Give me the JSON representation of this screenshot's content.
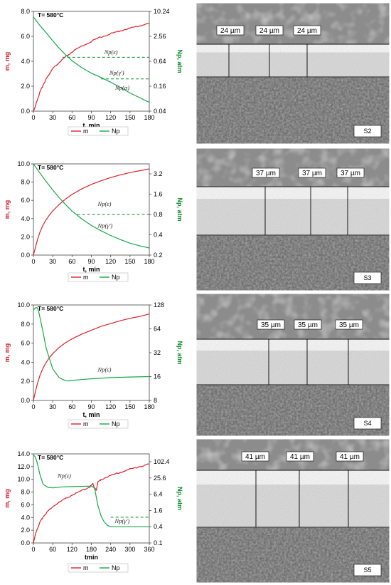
{
  "chart_data": [
    {
      "type": "line",
      "id": "c1",
      "annotation": "T= 580°C",
      "xlabel": "t, min",
      "ylabel": "m, mg",
      "y2label": "Np, atm",
      "xlim": [
        0,
        180
      ],
      "ylim": [
        0,
        8
      ],
      "y2log": true,
      "y2lim": [
        0.04,
        10.24
      ],
      "xticks": [
        "0",
        "30",
        "60",
        "90",
        "120",
        "150",
        "180"
      ],
      "yticks": [
        "0.0",
        "2.0",
        "4.0",
        "6.0",
        "8.0"
      ],
      "y2ticks": [
        "0.04",
        "0.16",
        "0.64",
        "2.56",
        "10.24"
      ],
      "legend": [
        "m",
        "Np"
      ],
      "series": [
        {
          "name": "m",
          "axis": "left",
          "color": "#e0202a",
          "x": [
            0,
            3,
            6,
            10,
            15,
            20,
            25,
            30,
            40,
            50,
            60,
            75,
            90,
            105,
            120,
            135,
            150,
            165,
            180
          ],
          "y": [
            0,
            0.4,
            0.9,
            1.5,
            2.1,
            2.6,
            3.0,
            3.4,
            3.9,
            4.35,
            4.75,
            5.2,
            5.6,
            5.95,
            6.2,
            6.45,
            6.65,
            6.85,
            7.05
          ],
          "noisy": true
        },
        {
          "name": "Np",
          "axis": "right",
          "color": "#18a84a",
          "x": [
            0,
            10,
            20,
            30,
            40,
            50,
            60,
            75,
            90,
            105,
            120,
            135,
            150,
            165,
            180
          ],
          "y": [
            7.5,
            4.7,
            3.1,
            2.0,
            1.32,
            0.92,
            0.66,
            0.45,
            0.33,
            0.26,
            0.2,
            0.15,
            0.11,
            0.085,
            0.065
          ]
        }
      ],
      "thresholds": [
        {
          "label": "Np(ε)",
          "y": 0.8,
          "x_start": 45
        },
        {
          "label": "Np(γ')",
          "y": 0.24,
          "x_start": 105
        }
      ],
      "extra_labels": [
        {
          "label": "Np(α)"
        }
      ]
    },
    {
      "type": "line",
      "id": "c2",
      "annotation": "T= 580°C",
      "xlabel": "t, min",
      "ylabel": "m, mg",
      "y2label": "Np, atm",
      "xlim": [
        0,
        180
      ],
      "ylim": [
        0,
        10
      ],
      "y2log": true,
      "y2lim": [
        0.2,
        4.5
      ],
      "xticks": [
        "0",
        "30",
        "60",
        "90",
        "120",
        "150",
        "180"
      ],
      "yticks": [
        "0.0",
        "2.0",
        "4.0",
        "6.0",
        "8.0",
        "10.0"
      ],
      "y2ticks": [
        "0.2",
        "0.4",
        "0.8",
        "1.6",
        "3.2"
      ],
      "legend": [
        "m",
        "Np"
      ],
      "series": [
        {
          "name": "m",
          "axis": "left",
          "color": "#e0202a",
          "x": [
            0,
            3,
            6,
            10,
            15,
            20,
            25,
            30,
            40,
            50,
            60,
            75,
            90,
            105,
            120,
            135,
            150,
            165,
            180
          ],
          "y": [
            0,
            0.8,
            1.6,
            2.5,
            3.3,
            3.9,
            4.4,
            4.85,
            5.55,
            6.15,
            6.65,
            7.25,
            7.75,
            8.15,
            8.5,
            8.8,
            9.05,
            9.25,
            9.45
          ]
        },
        {
          "name": "Np",
          "axis": "right",
          "color": "#18a84a",
          "x": [
            0,
            10,
            20,
            30,
            40,
            50,
            60,
            75,
            90,
            105,
            120,
            135,
            150,
            165,
            180
          ],
          "y": [
            4.5,
            3.3,
            2.45,
            1.85,
            1.42,
            1.12,
            0.9,
            0.69,
            0.55,
            0.46,
            0.39,
            0.34,
            0.3,
            0.275,
            0.255
          ]
        }
      ],
      "thresholds": [
        {
          "label": "Np(ε)",
          "y": 0.8,
          "x_start": 68
        }
      ],
      "extra_labels": [
        {
          "label": "Np(γ')"
        }
      ]
    },
    {
      "type": "line",
      "id": "c3",
      "annotation": "T= 580°C",
      "xlabel": "t, min",
      "ylabel": "m, mg",
      "y2label": "Np, atm",
      "xlim": [
        0,
        180
      ],
      "ylim": [
        0,
        10
      ],
      "y2log": true,
      "y2lim": [
        8,
        128
      ],
      "xticks": [
        "0",
        "30",
        "60",
        "90",
        "120",
        "150",
        "180"
      ],
      "yticks": [
        "0.0",
        "2.0",
        "4.0",
        "6.0",
        "8.0",
        "10.0"
      ],
      "y2ticks": [
        "8",
        "16",
        "32",
        "64",
        "128"
      ],
      "legend": [
        "m",
        "Np"
      ],
      "series": [
        {
          "name": "m",
          "axis": "left",
          "color": "#e0202a",
          "x": [
            0,
            3,
            6,
            10,
            15,
            20,
            25,
            30,
            40,
            50,
            60,
            75,
            90,
            105,
            120,
            135,
            150,
            165,
            180
          ],
          "y": [
            0,
            0.9,
            1.7,
            2.6,
            3.4,
            4.0,
            4.5,
            4.9,
            5.55,
            6.05,
            6.45,
            6.95,
            7.35,
            7.75,
            8.05,
            8.35,
            8.6,
            8.8,
            9.05
          ]
        },
        {
          "name": "Np",
          "axis": "right",
          "color": "#18a84a",
          "x": [
            0,
            3,
            6,
            8,
            10,
            15,
            20,
            30,
            40,
            50,
            55,
            60,
            80,
            100,
            120,
            150,
            180
          ],
          "y": [
            110,
            118,
            118,
            108,
            90,
            58,
            36,
            20,
            15.5,
            14.2,
            14.1,
            14.3,
            14.8,
            15.2,
            15.5,
            15.8,
            16.0
          ]
        }
      ],
      "thresholds": [],
      "extra_labels": [
        {
          "label": "Np(ε)"
        }
      ]
    },
    {
      "type": "line",
      "id": "c4",
      "annotation": "T= 580°C",
      "xlabel": "tmin",
      "ylabel": "m, mg",
      "y2label": "Np, atm",
      "xlim": [
        0,
        360
      ],
      "ylim": [
        0,
        14
      ],
      "y2log": true,
      "y2lim": [
        0.1,
        200
      ],
      "xticks": [
        "0",
        "60",
        "120",
        "180",
        "240",
        "300",
        "360"
      ],
      "yticks": [
        "0.0",
        "2.0",
        "4.0",
        "6.0",
        "8.0",
        "10.0",
        "12.0",
        "14.0"
      ],
      "y2ticks": [
        "0.1",
        "0.4",
        "1.6",
        "6.4",
        "25.6",
        "102.4"
      ],
      "legend": [
        "m",
        "Np"
      ],
      "series": [
        {
          "name": "m",
          "axis": "left",
          "color": "#e0202a",
          "x": [
            0,
            5,
            10,
            20,
            30,
            45,
            60,
            90,
            120,
            150,
            175,
            185,
            190,
            195,
            200,
            210,
            240,
            270,
            300,
            330,
            360
          ],
          "y": [
            0,
            1.1,
            2.0,
            3.2,
            4.1,
            5.0,
            5.7,
            6.7,
            7.5,
            8.2,
            8.8,
            9.3,
            8.6,
            8.3,
            9.5,
            10.0,
            10.6,
            11.1,
            11.6,
            12.0,
            12.4
          ],
          "noisy": true
        },
        {
          "name": "Np",
          "axis": "right",
          "color": "#18a84a",
          "x": [
            0,
            5,
            10,
            15,
            20,
            30,
            45,
            60,
            90,
            120,
            150,
            180,
            190,
            200,
            210,
            220,
            230,
            240,
            250,
            300,
            360
          ],
          "y": [
            180,
            160,
            110,
            65,
            35,
            15,
            11.5,
            11,
            12,
            12.3,
            12.5,
            12.8,
            11,
            2.5,
            1.0,
            0.6,
            0.45,
            0.4,
            0.4,
            0.4,
            0.4
          ]
        }
      ],
      "thresholds": [
        {
          "label": "Np(γ')",
          "y": 0.9,
          "x_start": 240
        }
      ],
      "extra_labels": [
        {
          "label": "Np(ε)"
        }
      ]
    }
  ],
  "micrographs": [
    {
      "sample": "S2",
      "thickness": [
        "24 µm",
        "24 µm",
        "24 µm"
      ]
    },
    {
      "sample": "S3",
      "thickness": [
        "37 µm",
        "37 µm",
        "37 µm"
      ]
    },
    {
      "sample": "S4",
      "thickness": [
        "35 µm",
        "35 µm",
        "35 µm"
      ]
    },
    {
      "sample": "S5",
      "thickness": [
        "41 µm",
        "41 µm",
        "41 µm"
      ]
    }
  ],
  "colors": {
    "m": "#e0202a",
    "Np": "#18a84a",
    "threshold": "#0a8a2a"
  }
}
